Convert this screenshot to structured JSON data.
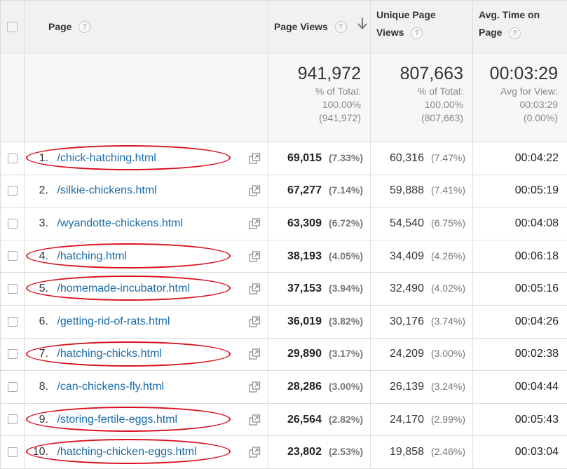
{
  "columns": {
    "page": "Page",
    "page_views": "Page Views",
    "unique_page_views_1": "Unique Page",
    "unique_page_views_2": "Views",
    "avg_time_1": "Avg. Time on",
    "avg_time_2": "Page",
    "help_glyph": "?"
  },
  "totals": {
    "page_views": {
      "value": "941,972",
      "line1": "% of Total:",
      "line2": "100.00%",
      "line3": "(941,972)"
    },
    "unique_page_views": {
      "value": "807,663",
      "line1": "% of Total:",
      "line2": "100.00%",
      "line3": "(807,663)"
    },
    "avg_time": {
      "value": "00:03:29",
      "line1": "Avg for View:",
      "line2": "00:03:29",
      "line3": "(0.00%)"
    }
  },
  "rows": [
    {
      "num": "1.",
      "page": "/chick-hatching.html",
      "pv": "69,015",
      "pv_pct": "(7.33%)",
      "upv": "60,316",
      "upv_pct": "(7.47%)",
      "time": "00:04:22",
      "circled": true
    },
    {
      "num": "2.",
      "page": "/silkie-chickens.html",
      "pv": "67,277",
      "pv_pct": "(7.14%)",
      "upv": "59,888",
      "upv_pct": "(7.41%)",
      "time": "00:05:19",
      "circled": false
    },
    {
      "num": "3.",
      "page": "/wyandotte-chickens.html",
      "pv": "63,309",
      "pv_pct": "(6.72%)",
      "upv": "54,540",
      "upv_pct": "(6.75%)",
      "time": "00:04:08",
      "circled": false
    },
    {
      "num": "4.",
      "page": "/hatching.html",
      "pv": "38,193",
      "pv_pct": "(4.05%)",
      "upv": "34,409",
      "upv_pct": "(4.26%)",
      "time": "00:06:18",
      "circled": true
    },
    {
      "num": "5.",
      "page": "/homemade-incubator.html",
      "pv": "37,153",
      "pv_pct": "(3.94%)",
      "upv": "32,490",
      "upv_pct": "(4.02%)",
      "time": "00:05:16",
      "circled": true
    },
    {
      "num": "6.",
      "page": "/getting-rid-of-rats.html",
      "pv": "36,019",
      "pv_pct": "(3.82%)",
      "upv": "30,176",
      "upv_pct": "(3.74%)",
      "time": "00:04:26",
      "circled": false
    },
    {
      "num": "7.",
      "page": "/hatching-chicks.html",
      "pv": "29,890",
      "pv_pct": "(3.17%)",
      "upv": "24,209",
      "upv_pct": "(3.00%)",
      "time": "00:02:38",
      "circled": true
    },
    {
      "num": "8.",
      "page": "/can-chickens-fly.html",
      "pv": "28,286",
      "pv_pct": "(3.00%)",
      "upv": "26,139",
      "upv_pct": "(3.24%)",
      "time": "00:04:44",
      "circled": false
    },
    {
      "num": "9.",
      "page": "/storing-fertile-eggs.html",
      "pv": "26,564",
      "pv_pct": "(2.82%)",
      "upv": "24,170",
      "upv_pct": "(2.99%)",
      "time": "00:05:43",
      "circled": true
    },
    {
      "num": "10.",
      "page": "/hatching-chicken-eggs.html",
      "pv": "23,802",
      "pv_pct": "(2.53%)",
      "upv": "19,858",
      "upv_pct": "(2.46%)",
      "time": "00:03:04",
      "circled": true
    }
  ],
  "icons": {
    "sort": "arrow-down-icon",
    "row_action": "open-in-new-window-icon",
    "help": "question-mark-icon"
  },
  "colors": {
    "link": "#1a6ba8",
    "annotation": "#d80f1e",
    "header_bg": "#f1f1f1"
  }
}
